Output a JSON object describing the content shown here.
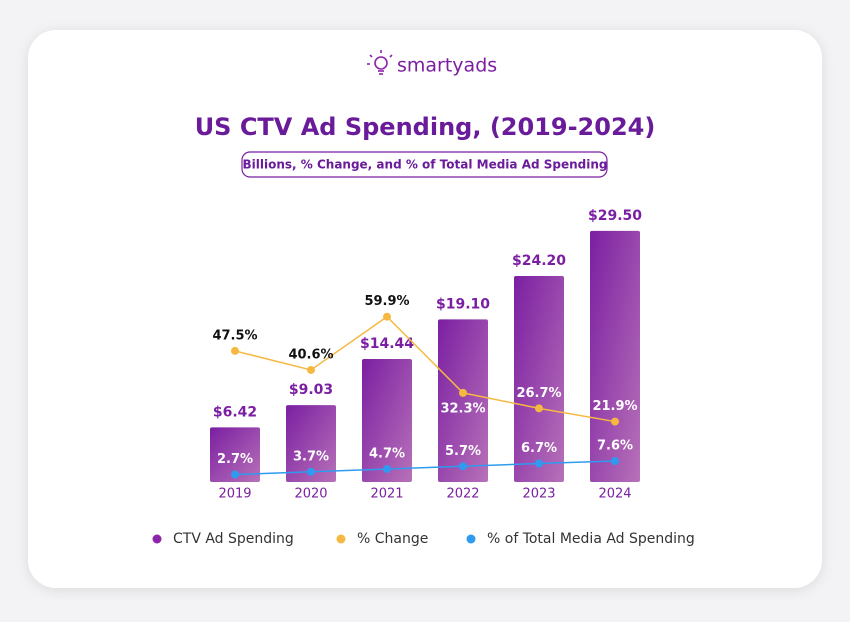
{
  "brand": "smartyads",
  "chart_data": {
    "type": "bar",
    "title": "US CTV Ad Spending, (2019-2024)",
    "subtitle": "Billions, % Change, and % of Total Media Ad Spending",
    "categories": [
      "2019",
      "2020",
      "2021",
      "2022",
      "2023",
      "2024"
    ],
    "ylim": [
      0,
      35
    ],
    "y2lim": [
      0,
      108
    ],
    "legend": "bottom",
    "series": [
      {
        "name": "CTV Ad Spending",
        "type": "bar",
        "color": "#8e24aa",
        "values": [
          6.42,
          9.03,
          14.44,
          19.1,
          24.2,
          29.5
        ],
        "value_labels": [
          "$6.42",
          "$9.03",
          "$14.44",
          "$19.10",
          "$24.20",
          "$29.50"
        ]
      },
      {
        "name": "% Change",
        "type": "line",
        "axis": "y2",
        "color": "#f5b942",
        "values": [
          47.5,
          40.6,
          59.9,
          32.3,
          26.7,
          21.9
        ],
        "value_labels": [
          "47.5%",
          "40.6%",
          "59.9%",
          "32.3%",
          "26.7%",
          "21.9%"
        ]
      },
      {
        "name": "% of Total Media Ad Spending",
        "type": "line",
        "axis": "y2",
        "color": "#2e9bf0",
        "values": [
          2.7,
          3.7,
          4.7,
          5.7,
          6.7,
          7.6
        ],
        "value_labels": [
          "2.7%",
          "3.7%",
          "4.7%",
          "5.7%",
          "6.7%",
          "7.6%"
        ]
      }
    ]
  }
}
